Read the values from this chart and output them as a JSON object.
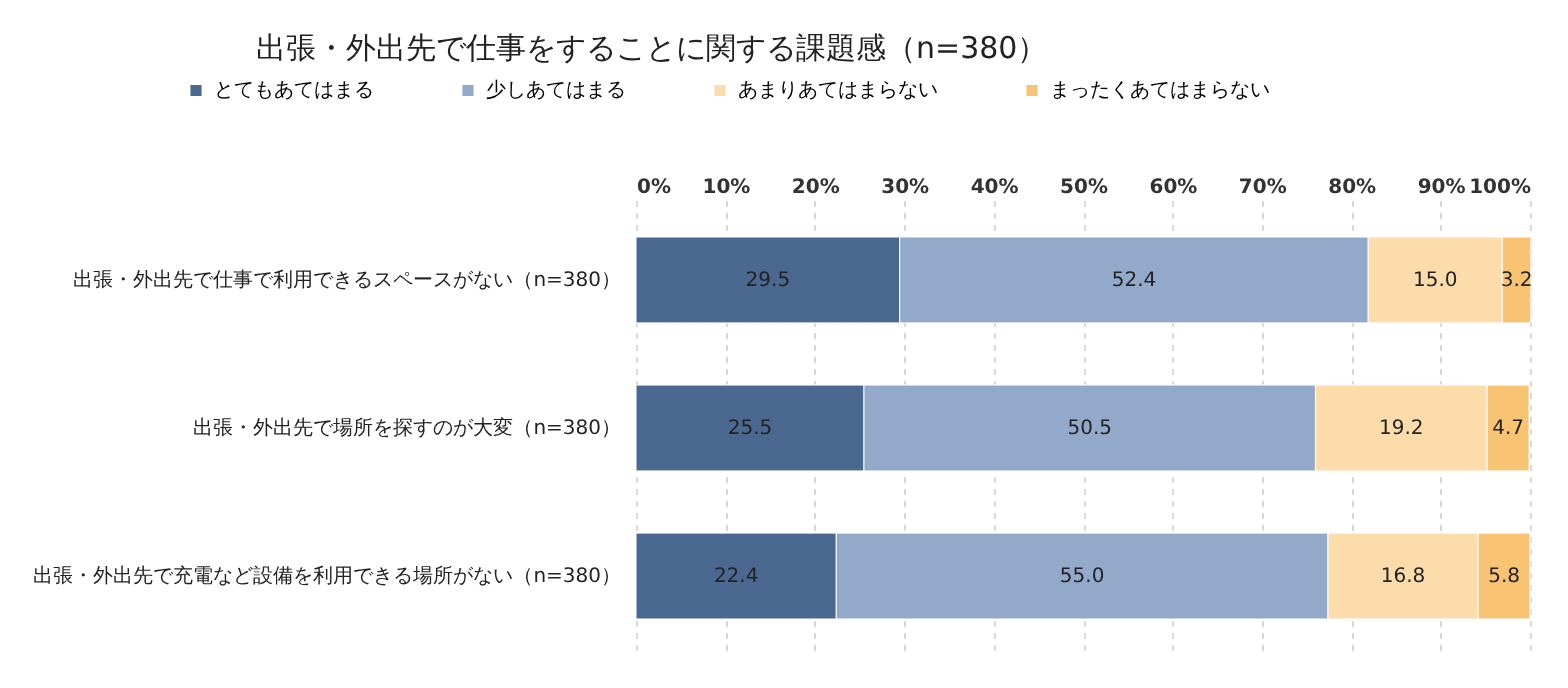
{
  "chart_data": {
    "type": "bar",
    "orientation": "horizontal",
    "stacked": true,
    "title": "出張・外出先で仕事をすることに関する課題感（n=380）",
    "categories": [
      "出張・外出先で仕事で利用できるスペースがない（n=380）",
      "出張・外出先で場所を探すのが大変（n=380）",
      "出張・外出先で充電など設備を利用できる場所がない（n=380）"
    ],
    "series": [
      {
        "name": "とてもあてはまる",
        "color": "#4a6890",
        "values": [
          29.5,
          25.5,
          22.4
        ]
      },
      {
        "name": "少しあてはまる",
        "color": "#93a9c9",
        "values": [
          52.4,
          50.5,
          55.0
        ]
      },
      {
        "name": "あまりあてはまらない",
        "color": "#fcdcab",
        "values": [
          15.0,
          19.2,
          16.8
        ]
      },
      {
        "name": "まったくあてはまらない",
        "color": "#f8c373",
        "values": [
          3.2,
          4.7,
          5.8
        ]
      }
    ],
    "value_labels": [
      [
        "29.5",
        "25.5",
        "22.4"
      ],
      [
        "52.4",
        "50.5",
        "55.0"
      ],
      [
        "15.0",
        "19.2",
        "16.8"
      ],
      [
        "3.2",
        "4.7",
        "5.8"
      ]
    ],
    "xlim": [
      0,
      100
    ],
    "xticks": [
      {
        "value": 0,
        "label": "0%"
      },
      {
        "value": 10,
        "label": "10%"
      },
      {
        "value": 20,
        "label": "20%"
      },
      {
        "value": 30,
        "label": "30%"
      },
      {
        "value": 40,
        "label": "40%"
      },
      {
        "value": 50,
        "label": "50%"
      },
      {
        "value": 60,
        "label": "60%"
      },
      {
        "value": 70,
        "label": "70%"
      },
      {
        "value": 80,
        "label": "80%"
      },
      {
        "value": 90,
        "label": "90%"
      },
      {
        "value": 100,
        "label": "100%"
      }
    ],
    "grid": "x",
    "legend": "top"
  }
}
